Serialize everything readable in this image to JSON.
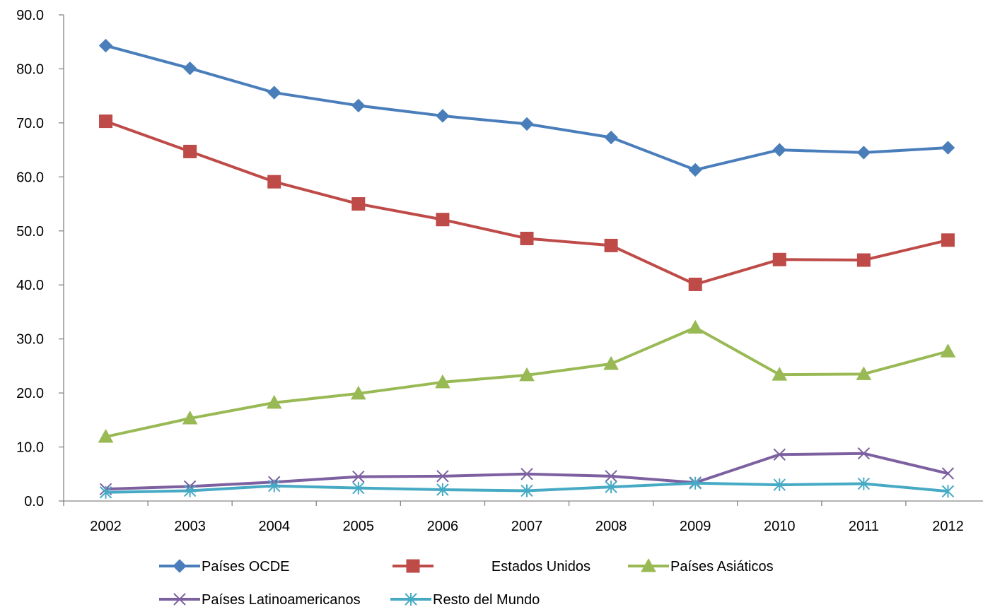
{
  "chart_data": {
    "type": "line",
    "title": "",
    "xlabel": "",
    "ylabel": "",
    "ylim": [
      0,
      90
    ],
    "ytick_step": 10,
    "ytick_labels": [
      "0.0",
      "10.0",
      "20.0",
      "30.0",
      "40.0",
      "50.0",
      "60.0",
      "70.0",
      "80.0",
      "90.0"
    ],
    "categories": [
      "2002",
      "2003",
      "2004",
      "2005",
      "2006",
      "2007",
      "2008",
      "2009",
      "2010",
      "2011",
      "2012"
    ],
    "grid": false,
    "legend_position": "bottom",
    "series": [
      {
        "name": "Países OCDE",
        "color": "#4a7ebb",
        "marker": "diamond",
        "values": [
          84.3,
          80.1,
          75.6,
          73.2,
          71.3,
          69.8,
          67.3,
          61.3,
          65.0,
          64.5,
          65.4
        ]
      },
      {
        "name": "Estados Unidos",
        "color": "#be4b48",
        "marker": "square",
        "values": [
          70.3,
          64.7,
          59.1,
          55.0,
          52.1,
          48.6,
          47.3,
          40.1,
          44.7,
          44.6,
          48.3
        ]
      },
      {
        "name": "Países Asiáticos",
        "color": "#98b954",
        "marker": "triangle",
        "values": [
          11.9,
          15.3,
          18.2,
          19.9,
          22.0,
          23.3,
          25.4,
          32.1,
          23.4,
          23.5,
          27.7
        ]
      },
      {
        "name": "Países Latinoamericanos",
        "color": "#7d60a0",
        "marker": "x",
        "values": [
          2.2,
          2.7,
          3.5,
          4.5,
          4.6,
          5.0,
          4.6,
          3.4,
          8.6,
          8.8,
          5.1
        ]
      },
      {
        "name": "Resto del Mundo",
        "color": "#46aac5",
        "marker": "asterisk",
        "values": [
          1.6,
          1.9,
          2.8,
          2.4,
          2.1,
          1.9,
          2.6,
          3.3,
          3.0,
          3.2,
          1.8
        ]
      }
    ]
  }
}
